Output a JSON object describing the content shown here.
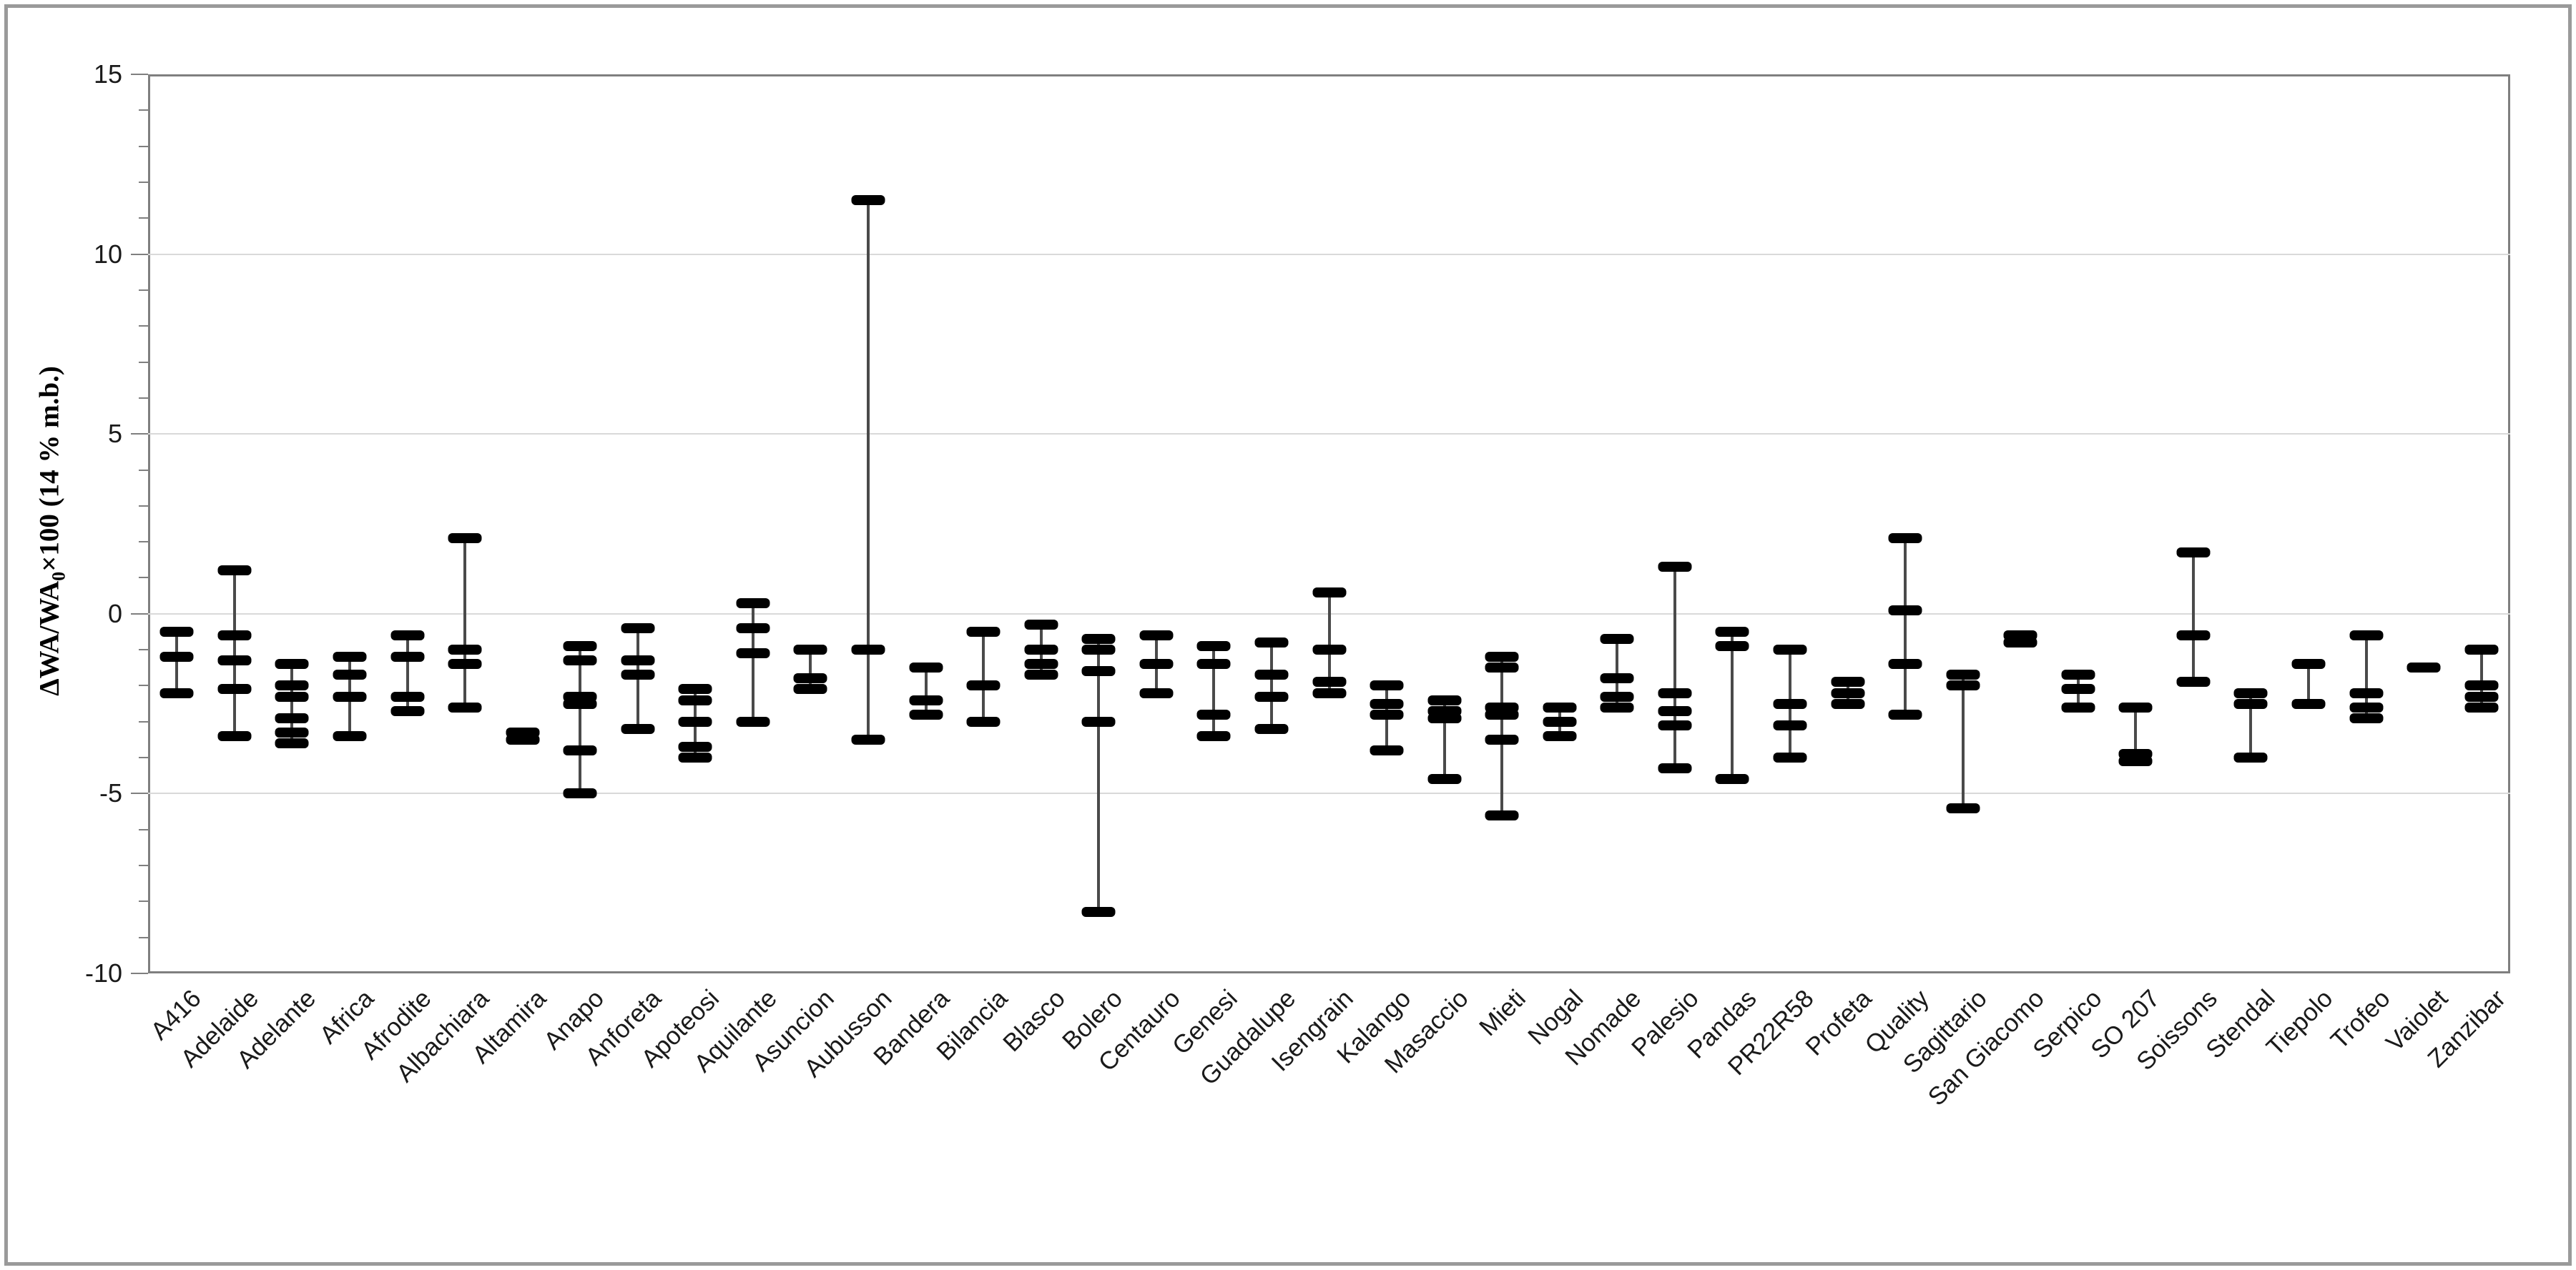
{
  "colors": {
    "mark": "#000000",
    "whisker": "#4a4a4a",
    "gridline": "#d9d9d9",
    "axis_border": "#7f7f7f",
    "frame_border": "#9a9a9a",
    "text": "#1a1a1a",
    "background": "#ffffff"
  },
  "chart_data": {
    "type": "hilo-range-marks",
    "title": "",
    "xlabel": "",
    "ylabel": {
      "prefix": "ΔWA/WA",
      "sub": "0",
      "suffix": "×100 (14 % m.b.)"
    },
    "ylim": [
      -10,
      15
    ],
    "yticks": [
      15,
      10,
      5,
      0,
      -5,
      -10
    ],
    "minor_tick_step": 1,
    "grid": "major-horizontal-only",
    "legend": "none",
    "marker_style": "thick horizontal dashes joined by thin vertical range line",
    "categories": [
      {
        "label": "A416",
        "marks": [
          -0.5,
          -1.2,
          -2.2
        ]
      },
      {
        "label": "Adelaide",
        "marks": [
          1.2,
          -0.6,
          -1.3,
          -2.1,
          -3.4
        ]
      },
      {
        "label": "Adelante",
        "marks": [
          -1.4,
          -2.0,
          -2.3,
          -2.9,
          -3.3,
          -3.6
        ]
      },
      {
        "label": "Africa",
        "marks": [
          -1.2,
          -1.7,
          -2.3,
          -3.4
        ]
      },
      {
        "label": "Afrodite",
        "marks": [
          -0.6,
          -1.2,
          -2.3,
          -2.7
        ]
      },
      {
        "label": "Albachiara",
        "marks": [
          2.1,
          -1.0,
          -1.4,
          -2.6
        ]
      },
      {
        "label": "Altamira",
        "marks": [
          -3.3,
          -3.5
        ]
      },
      {
        "label": "Anapo",
        "marks": [
          -0.9,
          -1.3,
          -2.3,
          -2.5,
          -3.8,
          -5.0
        ]
      },
      {
        "label": "Anforeta",
        "marks": [
          -0.4,
          -1.3,
          -1.7,
          -3.2
        ]
      },
      {
        "label": "Apoteosi",
        "marks": [
          -2.1,
          -2.4,
          -3.0,
          -3.7,
          -4.0
        ]
      },
      {
        "label": "Aquilante",
        "marks": [
          0.3,
          -0.4,
          -1.1,
          -3.0
        ]
      },
      {
        "label": "Asuncion",
        "marks": [
          -1.0,
          -1.8,
          -2.1
        ]
      },
      {
        "label": "Aubusson",
        "marks": [
          11.5,
          -1.0,
          -3.5
        ]
      },
      {
        "label": "Bandera",
        "marks": [
          -1.5,
          -2.4,
          -2.8
        ]
      },
      {
        "label": "Bilancia",
        "marks": [
          -0.5,
          -2.0,
          -3.0
        ]
      },
      {
        "label": "Blasco",
        "marks": [
          -0.3,
          -1.0,
          -1.4,
          -1.7
        ]
      },
      {
        "label": "Bolero",
        "marks": [
          -0.7,
          -1.0,
          -1.6,
          -3.0,
          -8.3
        ]
      },
      {
        "label": "Centauro",
        "marks": [
          -0.6,
          -1.4,
          -2.2
        ]
      },
      {
        "label": "Genesi",
        "marks": [
          -0.9,
          -1.4,
          -2.8,
          -3.4
        ]
      },
      {
        "label": "Guadalupe",
        "marks": [
          -0.8,
          -1.7,
          -2.3,
          -3.2
        ]
      },
      {
        "label": "Isengrain",
        "marks": [
          0.6,
          -1.0,
          -1.9,
          -2.2
        ]
      },
      {
        "label": "Kalango",
        "marks": [
          -2.0,
          -2.5,
          -2.8,
          -3.8
        ]
      },
      {
        "label": "Masaccio",
        "marks": [
          -2.4,
          -2.7,
          -2.9,
          -4.6
        ]
      },
      {
        "label": "Mieti",
        "marks": [
          -1.2,
          -1.5,
          -2.6,
          -2.8,
          -3.5,
          -5.6
        ]
      },
      {
        "label": "Nogal",
        "marks": [
          -2.6,
          -3.0,
          -3.4
        ]
      },
      {
        "label": "Nomade",
        "marks": [
          -0.7,
          -1.8,
          -2.3,
          -2.6
        ]
      },
      {
        "label": "Palesio",
        "marks": [
          1.3,
          -2.2,
          -2.7,
          -3.1,
          -4.3
        ]
      },
      {
        "label": "Pandas",
        "marks": [
          -0.5,
          -0.9,
          -4.6
        ]
      },
      {
        "label": "PR22R58",
        "marks": [
          -1.0,
          -2.5,
          -3.1,
          -4.0
        ]
      },
      {
        "label": "Profeta",
        "marks": [
          -1.9,
          -2.2,
          -2.5
        ]
      },
      {
        "label": "Quality",
        "marks": [
          2.1,
          0.1,
          -1.4,
          -2.8
        ]
      },
      {
        "label": "Sagittario",
        "marks": [
          -1.7,
          -2.0,
          -5.4
        ]
      },
      {
        "label": "San Giacomo",
        "marks": [
          -0.6,
          -0.8
        ]
      },
      {
        "label": "Serpico",
        "marks": [
          -1.7,
          -2.1,
          -2.6
        ]
      },
      {
        "label": "SO 207",
        "marks": [
          -2.6,
          -3.9,
          -4.1
        ]
      },
      {
        "label": "Soissons",
        "marks": [
          1.7,
          -0.6,
          -1.9
        ]
      },
      {
        "label": "Stendal",
        "marks": [
          -2.2,
          -2.5,
          -4.0
        ]
      },
      {
        "label": "Tiepolo",
        "marks": [
          -1.4,
          -2.5
        ]
      },
      {
        "label": "Trofeo",
        "marks": [
          -0.6,
          -2.2,
          -2.6,
          -2.9
        ]
      },
      {
        "label": "Vaiolet",
        "marks": [
          -1.5
        ]
      },
      {
        "label": "Zanzibar",
        "marks": [
          -1.0,
          -2.0,
          -2.3,
          -2.6
        ]
      }
    ]
  }
}
